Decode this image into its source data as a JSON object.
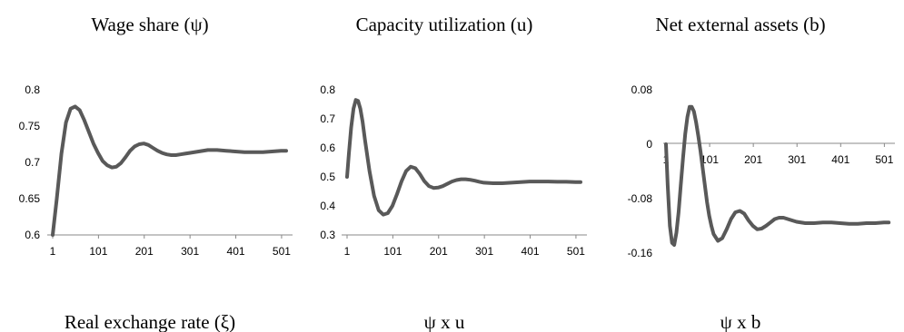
{
  "chart_data": [
    {
      "type": "line",
      "title": "Wage share (ψ)",
      "x_ticks": [
        "1",
        "101",
        "201",
        "301",
        "401",
        "501"
      ],
      "y_ticks": [
        "0.8",
        "0.75",
        "0.7",
        "0.65",
        "0.6"
      ],
      "xlim": [
        1,
        521
      ],
      "ylim": [
        0.6,
        0.8
      ],
      "series": [
        {
          "color": "#595959",
          "x": [
            1,
            10,
            20,
            30,
            40,
            50,
            60,
            70,
            80,
            90,
            100,
            110,
            120,
            130,
            140,
            150,
            160,
            170,
            180,
            190,
            200,
            210,
            220,
            230,
            240,
            250,
            260,
            270,
            280,
            290,
            300,
            320,
            340,
            360,
            380,
            400,
            420,
            440,
            460,
            480,
            500,
            511
          ],
          "y": [
            0.6,
            0.65,
            0.712,
            0.755,
            0.774,
            0.777,
            0.772,
            0.758,
            0.742,
            0.726,
            0.713,
            0.702,
            0.696,
            0.693,
            0.694,
            0.699,
            0.707,
            0.716,
            0.722,
            0.725,
            0.726,
            0.724,
            0.72,
            0.716,
            0.713,
            0.711,
            0.71,
            0.71,
            0.711,
            0.712,
            0.713,
            0.715,
            0.717,
            0.717,
            0.716,
            0.715,
            0.714,
            0.714,
            0.714,
            0.715,
            0.716,
            0.716
          ]
        }
      ]
    },
    {
      "type": "line",
      "title": "Capacity utilization (u)",
      "x_ticks": [
        "1",
        "101",
        "201",
        "301",
        "401",
        "501"
      ],
      "y_ticks": [
        "0.8",
        "0.7",
        "0.6",
        "0.5",
        "0.4",
        "0.3"
      ],
      "xlim": [
        1,
        521
      ],
      "ylim": [
        0.3,
        0.8
      ],
      "series": [
        {
          "color": "#595959",
          "x": [
            1,
            5,
            10,
            15,
            20,
            25,
            30,
            35,
            40,
            50,
            60,
            70,
            80,
            90,
            100,
            110,
            120,
            130,
            140,
            150,
            160,
            170,
            180,
            190,
            200,
            210,
            220,
            230,
            240,
            250,
            260,
            270,
            280,
            290,
            300,
            320,
            340,
            360,
            380,
            400,
            420,
            440,
            460,
            480,
            500,
            511
          ],
          "y": [
            0.5,
            0.58,
            0.67,
            0.735,
            0.765,
            0.762,
            0.735,
            0.69,
            0.63,
            0.52,
            0.435,
            0.385,
            0.37,
            0.375,
            0.4,
            0.44,
            0.485,
            0.52,
            0.535,
            0.53,
            0.51,
            0.485,
            0.468,
            0.462,
            0.463,
            0.468,
            0.476,
            0.484,
            0.489,
            0.492,
            0.492,
            0.49,
            0.487,
            0.483,
            0.48,
            0.478,
            0.478,
            0.48,
            0.482,
            0.484,
            0.484,
            0.484,
            0.483,
            0.483,
            0.482,
            0.482
          ]
        }
      ]
    },
    {
      "type": "line",
      "title": "Net external assets (b)",
      "x_ticks": [
        "1",
        "101",
        "201",
        "301",
        "401",
        "501"
      ],
      "y_ticks": [
        "0.08",
        "0",
        "-0.08",
        "-0.16"
      ],
      "xlim": [
        1,
        521
      ],
      "ylim": [
        -0.16,
        0.08
      ],
      "series": [
        {
          "color": "#595959",
          "x": [
            1,
            5,
            10,
            15,
            20,
            25,
            30,
            35,
            40,
            45,
            50,
            55,
            60,
            65,
            70,
            75,
            80,
            85,
            90,
            95,
            100,
            105,
            110,
            120,
            130,
            140,
            150,
            160,
            170,
            180,
            190,
            200,
            210,
            220,
            230,
            240,
            250,
            260,
            270,
            280,
            290,
            300,
            320,
            340,
            360,
            380,
            400,
            420,
            440,
            460,
            480,
            500,
            511
          ],
          "y": [
            0.0,
            -0.06,
            -0.12,
            -0.145,
            -0.148,
            -0.13,
            -0.1,
            -0.06,
            -0.02,
            0.015,
            0.04,
            0.055,
            0.055,
            0.048,
            0.032,
            0.012,
            -0.01,
            -0.035,
            -0.06,
            -0.085,
            -0.105,
            -0.12,
            -0.132,
            -0.142,
            -0.138,
            -0.125,
            -0.11,
            -0.1,
            -0.098,
            -0.102,
            -0.112,
            -0.12,
            -0.125,
            -0.124,
            -0.12,
            -0.115,
            -0.11,
            -0.108,
            -0.108,
            -0.11,
            -0.112,
            -0.114,
            -0.116,
            -0.116,
            -0.115,
            -0.115,
            -0.116,
            -0.117,
            -0.117,
            -0.116,
            -0.116,
            -0.115,
            -0.115
          ]
        }
      ]
    },
    {
      "type": "line",
      "title": "Real exchange rate (ξ)"
    },
    {
      "type": "line",
      "title": "ψ x u"
    },
    {
      "type": "line",
      "title": "ψ x b"
    }
  ]
}
